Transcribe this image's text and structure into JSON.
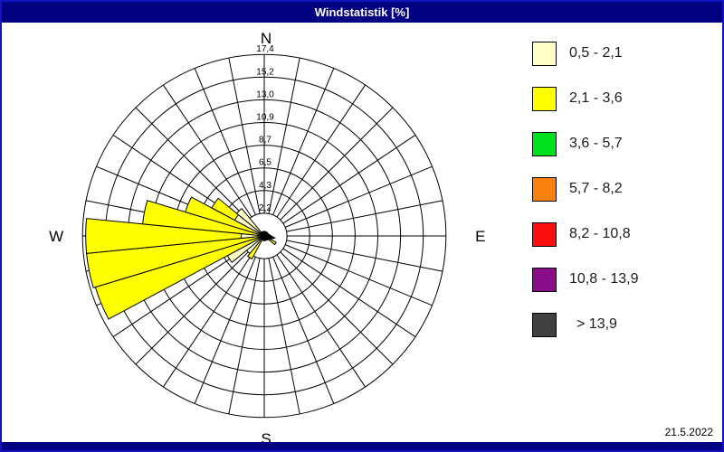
{
  "window": {
    "title": "Windstatistik [%]",
    "date": "21.5.2022"
  },
  "colors": {
    "frame": "#1212c0",
    "titlebar_bg": "#000080",
    "titlebar_text": "#ffffff",
    "footer_bg": "#000080",
    "grid": "#000000",
    "background": "#ffffff"
  },
  "legend": {
    "items": [
      {
        "label": "0,5 - 2,1",
        "color": "#ffffc8"
      },
      {
        "label": "2,1 - 3,6",
        "color": "#ffff00"
      },
      {
        "label": "3,6 - 5,7",
        "color": "#00e01e"
      },
      {
        "label": "5,7 - 8,2",
        "color": "#f8820d"
      },
      {
        "label": "8,2 - 10,8",
        "color": "#fa0d0d"
      },
      {
        "label": "10,8 - 13,9",
        "color": "#8a0d8a"
      },
      {
        "label": "> 13,9",
        "color": "#404040"
      }
    ]
  },
  "chart_data": {
    "type": "windrose",
    "title": "Windstatistik [%]",
    "units": "percent frequency",
    "compass_labels": {
      "n": "N",
      "e": "E",
      "s": "S",
      "w": "W"
    },
    "rings": [
      2.2,
      4.3,
      6.5,
      8.7,
      10.9,
      13.0,
      15.2,
      17.4
    ],
    "ring_labels": [
      "2,2",
      "4,3",
      "6,5",
      "8,7",
      "10,9",
      "13,0",
      "15,2",
      "17,4"
    ],
    "max_value": 17.4,
    "sectors": 32,
    "sector_width_deg": 11.25,
    "grid_on": true,
    "legend_position": "right",
    "speed_classes": [
      {
        "label": "0,5 - 2,1",
        "color": "#ffffc8"
      },
      {
        "label": "2,1 - 3,6",
        "color": "#ffff00"
      },
      {
        "label": "3,6 - 5,7",
        "color": "#00e01e"
      },
      {
        "label": "5,7 - 8,2",
        "color": "#f8820d"
      },
      {
        "label": "8,2 - 10,8",
        "color": "#fa0d0d"
      },
      {
        "label": "10,8 - 13,9",
        "color": "#8a0d8a"
      },
      {
        "label": "> 13,9",
        "color": "#404040"
      }
    ],
    "bars": [
      {
        "direction_deg": 123.75,
        "segments": [
          {
            "class_index": 1,
            "class": "2,1 - 3,6",
            "cum_value": 1.3
          }
        ]
      },
      {
        "direction_deg": 213.75,
        "segments": [
          {
            "class_index": 1,
            "class": "2,1 - 3,6",
            "cum_value": 2.5
          }
        ]
      },
      {
        "direction_deg": 236.25,
        "segments": [
          {
            "class_index": 0,
            "class": "0,5 - 2,1",
            "cum_value": 4.0
          }
        ]
      },
      {
        "direction_deg": 247.5,
        "segments": [
          {
            "class_index": 1,
            "class": "2,1 - 3,6",
            "cum_value": 16.9
          }
        ]
      },
      {
        "direction_deg": 258.75,
        "segments": [
          {
            "class_index": 1,
            "class": "2,1 - 3,6",
            "cum_value": 17.1
          }
        ]
      },
      {
        "direction_deg": 270.0,
        "segments": [
          {
            "class_index": 0,
            "class": "0,5 - 2,1",
            "cum_value": 2.2
          },
          {
            "class_index": 1,
            "class": "2,1 - 3,6",
            "cum_value": 17.1
          }
        ]
      },
      {
        "direction_deg": 281.25,
        "segments": [
          {
            "class_index": 1,
            "class": "2,1 - 3,6",
            "cum_value": 11.7
          }
        ]
      },
      {
        "direction_deg": 292.5,
        "segments": [
          {
            "class_index": 1,
            "class": "2,1 - 3,6",
            "cum_value": 7.9
          }
        ]
      },
      {
        "direction_deg": 303.75,
        "segments": [
          {
            "class_index": 0,
            "class": "0,5 - 2,1",
            "cum_value": 3.2
          },
          {
            "class_index": 1,
            "class": "2,1 - 3,6",
            "cum_value": 5.7
          }
        ]
      },
      {
        "direction_deg": 315.0,
        "segments": [
          {
            "class_index": 0,
            "class": "0,5 - 2,1",
            "cum_value": 3.4
          }
        ]
      }
    ]
  }
}
